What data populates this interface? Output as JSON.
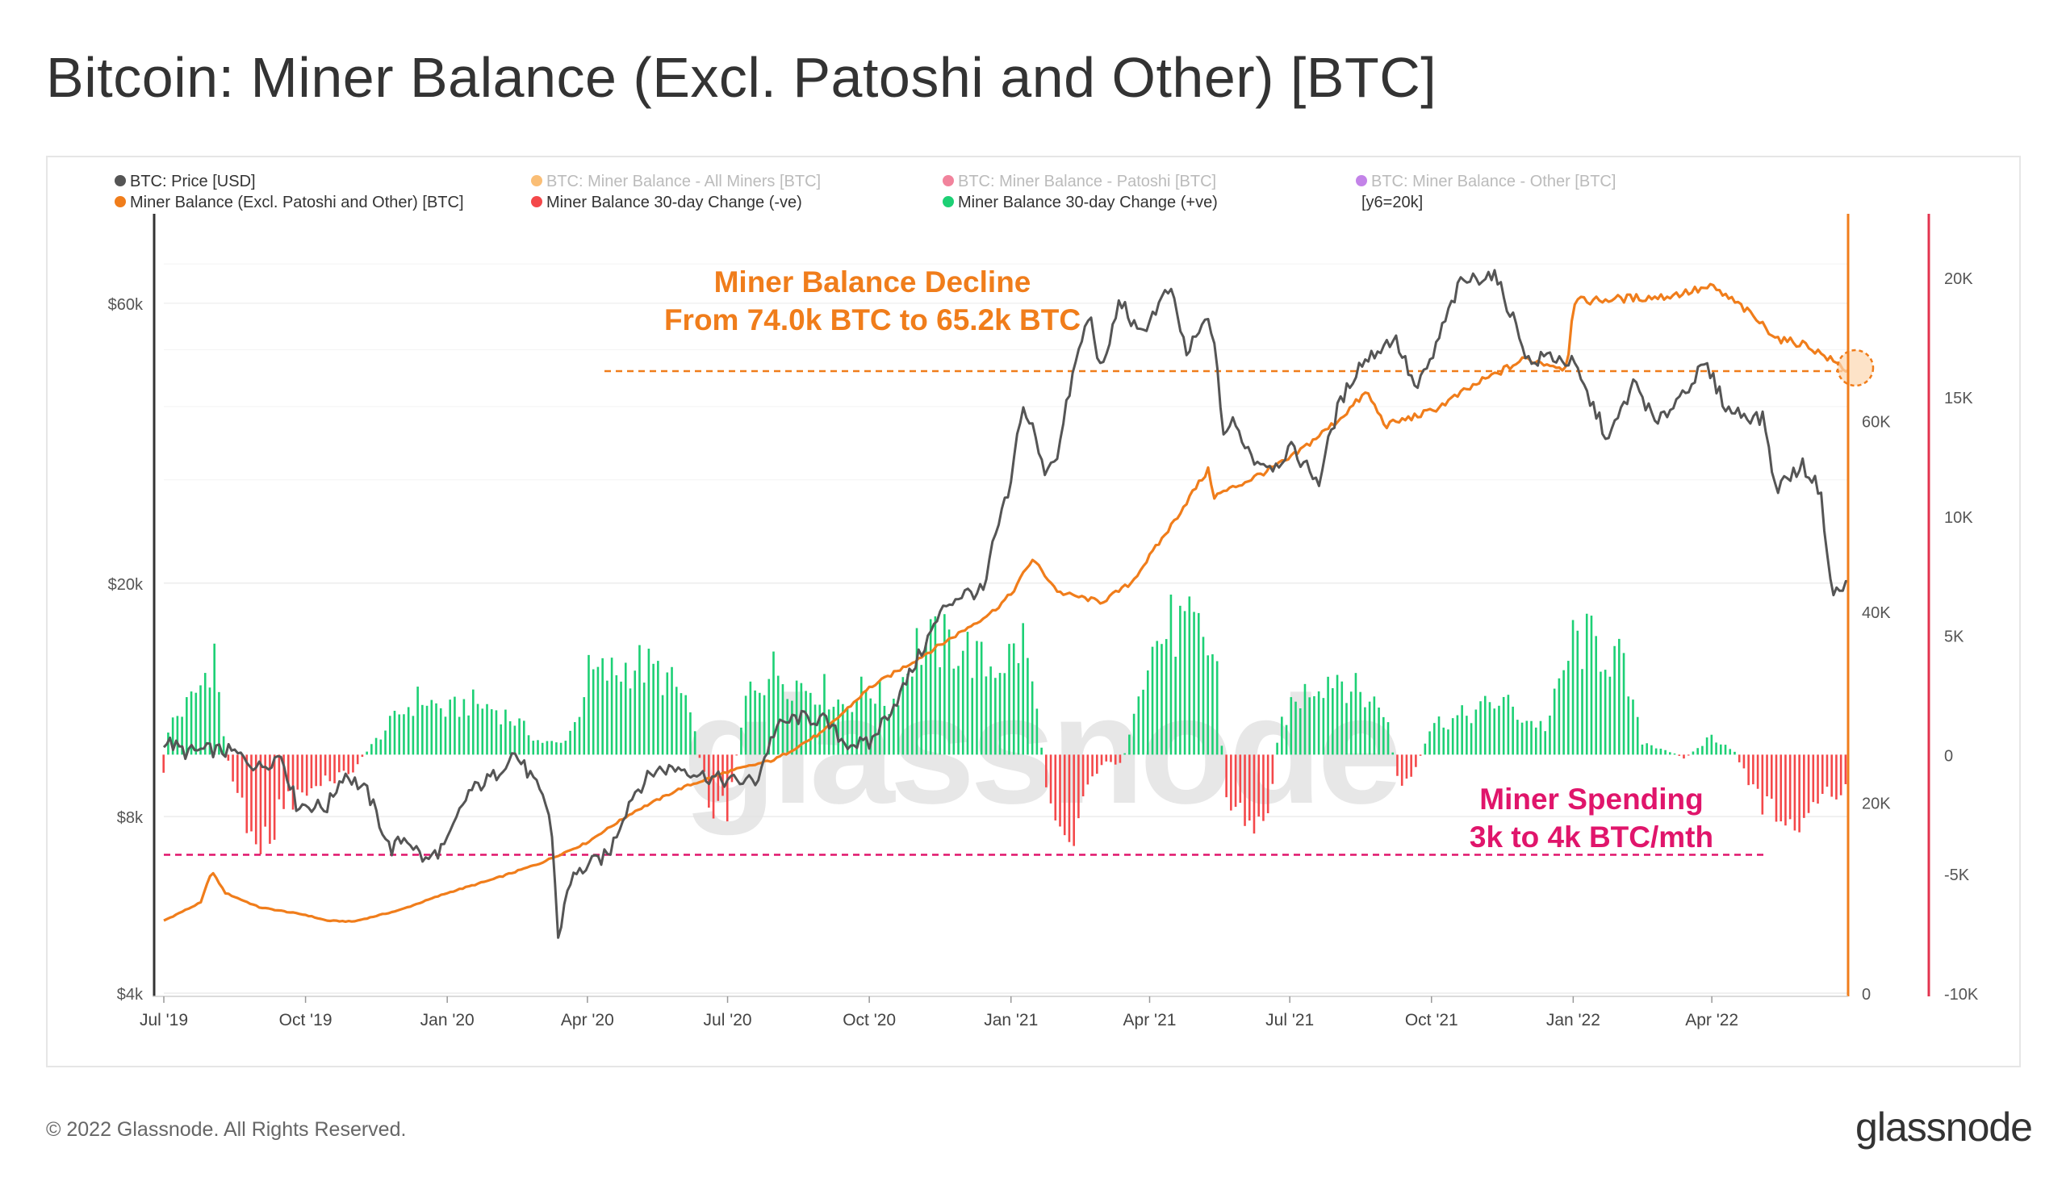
{
  "page": {
    "title": "Bitcoin: Miner Balance (Excl. Patoshi and Other) [BTC]",
    "copyright": "© 2022 Glassnode. All Rights Reserved.",
    "brand": "glassnode",
    "watermark": "glassnode"
  },
  "chart_data": {
    "type": "line",
    "legend": [
      {
        "label": "BTC: Price [USD]",
        "color": "#555555",
        "active": true
      },
      {
        "label": "BTC: Miner Balance - All Miners [BTC]",
        "color": "#f7931a",
        "active": false
      },
      {
        "label": "BTC: Miner Balance - Patoshi [BTC]",
        "color": "#e8305a",
        "active": false
      },
      {
        "label": "BTC: Miner Balance - Other [BTC]",
        "color": "#9b30d9",
        "active": false
      },
      {
        "label": "Miner Balance (Excl. Patoshi and Other) [BTC]",
        "color": "#f07d1b",
        "active": true
      },
      {
        "label": "Miner Balance 30-day Change (-ve)",
        "color": "#f4484a",
        "active": true
      },
      {
        "label": "Miner Balance 30-day Change (+ve)",
        "color": "#1dd075",
        "active": true
      },
      {
        "label": "[y6=20k]",
        "color": "",
        "active": true
      }
    ],
    "x_ticks": [
      "Jul '19",
      "Oct '19",
      "Jan '20",
      "Apr '20",
      "Jul '20",
      "Oct '20",
      "Jan '21",
      "Apr '21",
      "Jul '21",
      "Oct '21",
      "Jan '22",
      "Apr '22"
    ],
    "x_tick_dates": [
      "2019-07-01",
      "2019-10-01",
      "2020-01-01",
      "2020-04-01",
      "2020-07-01",
      "2020-10-01",
      "2021-01-01",
      "2021-04-01",
      "2021-07-01",
      "2021-10-01",
      "2022-01-01",
      "2022-04-01"
    ],
    "x_range": [
      "2019-07-01",
      "2022-06-29"
    ],
    "y_axes": {
      "price": {
        "label_ticks": [
          "$4k",
          "$8k",
          "$20k",
          "$60k"
        ],
        "tick_values": [
          4000,
          8000,
          20000,
          60000
        ],
        "scale": "log",
        "range": [
          4000,
          80000
        ]
      },
      "balance": {
        "label_ticks": [
          "0",
          "20K",
          "40K",
          "60K"
        ],
        "tick_values": [
          0,
          20000,
          40000,
          60000
        ],
        "range": [
          0,
          80000
        ]
      },
      "change": {
        "label_ticks": [
          "-10K",
          "-5K",
          "0",
          "5K",
          "10K",
          "15K",
          "20K"
        ],
        "tick_values": [
          -10000,
          -5000,
          0,
          5000,
          10000,
          15000,
          20000
        ],
        "range": [
          -10000,
          22000
        ]
      }
    },
    "series": [
      {
        "name": "BTC: Price [USD]",
        "axis": "price",
        "color": "#555555",
        "points": [
          [
            "2019-07-01",
            10800
          ],
          [
            "2019-07-15",
            10300
          ],
          [
            "2019-08-01",
            10400
          ],
          [
            "2019-08-15",
            10300
          ],
          [
            "2019-09-01",
            9700
          ],
          [
            "2019-09-15",
            10200
          ],
          [
            "2019-09-25",
            8400
          ],
          [
            "2019-10-15",
            8300
          ],
          [
            "2019-10-26",
            9500
          ],
          [
            "2019-11-10",
            8800
          ],
          [
            "2019-11-25",
            7000
          ],
          [
            "2019-12-05",
            7400
          ],
          [
            "2019-12-18",
            6700
          ],
          [
            "2020-01-01",
            7200
          ],
          [
            "2020-01-15",
            8800
          ],
          [
            "2020-02-01",
            9400
          ],
          [
            "2020-02-13",
            10300
          ],
          [
            "2020-02-25",
            9300
          ],
          [
            "2020-03-08",
            8000
          ],
          [
            "2020-03-13",
            4900
          ],
          [
            "2020-03-20",
            6200
          ],
          [
            "2020-04-01",
            6600
          ],
          [
            "2020-04-15",
            6900
          ],
          [
            "2020-04-30",
            8700
          ],
          [
            "2020-05-15",
            9600
          ],
          [
            "2020-06-01",
            9700
          ],
          [
            "2020-06-15",
            9400
          ],
          [
            "2020-07-01",
            9200
          ],
          [
            "2020-07-20",
            9200
          ],
          [
            "2020-08-01",
            11300
          ],
          [
            "2020-08-15",
            11800
          ],
          [
            "2020-09-01",
            11700
          ],
          [
            "2020-09-15",
            10700
          ],
          [
            "2020-10-01",
            10600
          ],
          [
            "2020-10-21",
            12900
          ],
          [
            "2020-11-05",
            15500
          ],
          [
            "2020-11-20",
            18400
          ],
          [
            "2020-12-01",
            19200
          ],
          [
            "2020-12-15",
            19400
          ],
          [
            "2020-12-20",
            23000
          ],
          [
            "2021-01-01",
            29300
          ],
          [
            "2021-01-08",
            40000
          ],
          [
            "2021-01-15",
            36800
          ],
          [
            "2021-01-22",
            31000
          ],
          [
            "2021-02-01",
            33500
          ],
          [
            "2021-02-10",
            45000
          ],
          [
            "2021-02-21",
            57500
          ],
          [
            "2021-03-01",
            45000
          ],
          [
            "2021-03-13",
            61000
          ],
          [
            "2021-03-25",
            52500
          ],
          [
            "2021-04-14",
            63500
          ],
          [
            "2021-04-25",
            49000
          ],
          [
            "2021-05-10",
            57000
          ],
          [
            "2021-05-19",
            36000
          ],
          [
            "2021-05-25",
            37500
          ],
          [
            "2021-06-08",
            32500
          ],
          [
            "2021-06-22",
            31700
          ],
          [
            "2021-07-01",
            34000
          ],
          [
            "2021-07-20",
            29800
          ],
          [
            "2021-08-01",
            39500
          ],
          [
            "2021-08-15",
            47000
          ],
          [
            "2021-09-07",
            52500
          ],
          [
            "2021-09-21",
            42500
          ],
          [
            "2021-10-01",
            48000
          ],
          [
            "2021-10-20",
            65000
          ],
          [
            "2021-11-10",
            67500
          ],
          [
            "2021-11-26",
            54000
          ],
          [
            "2021-12-04",
            47000
          ],
          [
            "2021-12-15",
            49000
          ],
          [
            "2022-01-01",
            47300
          ],
          [
            "2022-01-10",
            41900
          ],
          [
            "2022-01-24",
            35000
          ],
          [
            "2022-02-10",
            44000
          ],
          [
            "2022-02-24",
            37000
          ],
          [
            "2022-03-28",
            47000
          ],
          [
            "2022-04-11",
            39500
          ],
          [
            "2022-05-05",
            38000
          ],
          [
            "2022-05-12",
            29000
          ],
          [
            "2022-05-30",
            31700
          ],
          [
            "2022-06-10",
            29000
          ],
          [
            "2022-06-18",
            19000
          ],
          [
            "2022-06-29",
            20000
          ]
        ]
      },
      {
        "name": "Miner Balance (Excl. Patoshi and Other) [BTC]",
        "axis": "balance",
        "color": "#f07d1b",
        "points": [
          [
            "2019-07-01",
            7600
          ],
          [
            "2019-07-25",
            9500
          ],
          [
            "2019-08-01",
            12800
          ],
          [
            "2019-08-10",
            10500
          ],
          [
            "2019-09-01",
            9000
          ],
          [
            "2019-10-01",
            8200
          ],
          [
            "2019-10-15",
            7600
          ],
          [
            "2019-11-01",
            7500
          ],
          [
            "2019-12-01",
            8700
          ],
          [
            "2020-01-01",
            10500
          ],
          [
            "2020-02-01",
            12000
          ],
          [
            "2020-03-01",
            13600
          ],
          [
            "2020-04-01",
            15800
          ],
          [
            "2020-04-08",
            16600
          ],
          [
            "2020-05-01",
            19000
          ],
          [
            "2020-06-01",
            21500
          ],
          [
            "2020-07-01",
            23200
          ],
          [
            "2020-08-01",
            24500
          ],
          [
            "2020-09-01",
            27400
          ],
          [
            "2020-10-01",
            32000
          ],
          [
            "2020-11-01",
            35000
          ],
          [
            "2020-12-01",
            38000
          ],
          [
            "2020-12-20",
            40000
          ],
          [
            "2021-01-01",
            41800
          ],
          [
            "2021-01-15",
            45500
          ],
          [
            "2021-02-01",
            42000
          ],
          [
            "2021-03-01",
            41000
          ],
          [
            "2021-03-20",
            43000
          ],
          [
            "2021-04-15",
            49000
          ],
          [
            "2021-05-01",
            53000
          ],
          [
            "2021-05-10",
            55000
          ],
          [
            "2021-05-12",
            52000
          ],
          [
            "2021-06-01",
            53500
          ],
          [
            "2021-07-01",
            56000
          ],
          [
            "2021-08-01",
            60000
          ],
          [
            "2021-08-20",
            63000
          ],
          [
            "2021-09-01",
            59500
          ],
          [
            "2021-10-01",
            61000
          ],
          [
            "2021-11-01",
            64000
          ],
          [
            "2021-12-01",
            66500
          ],
          [
            "2021-12-28",
            65500
          ],
          [
            "2022-01-01",
            72500
          ],
          [
            "2022-02-01",
            72800
          ],
          [
            "2022-03-01",
            73000
          ],
          [
            "2022-04-01",
            74000
          ],
          [
            "2022-04-20",
            72000
          ],
          [
            "2022-05-15",
            68500
          ],
          [
            "2022-06-01",
            68000
          ],
          [
            "2022-06-29",
            65200
          ]
        ]
      },
      {
        "name": "Miner Balance 30-day Change",
        "axis": "change",
        "color_positive": "#1dd075",
        "color_negative": "#f4484a",
        "points": [
          [
            "2019-07-01",
            -1200
          ],
          [
            "2019-07-05",
            1800
          ],
          [
            "2019-07-15",
            2500
          ],
          [
            "2019-07-25",
            3700
          ],
          [
            "2019-08-03",
            5700
          ],
          [
            "2019-08-08",
            1500
          ],
          [
            "2019-08-15",
            -1600
          ],
          [
            "2019-08-25",
            -3500
          ],
          [
            "2019-09-01",
            -4200
          ],
          [
            "2019-09-05",
            -5300
          ],
          [
            "2019-09-15",
            -2600
          ],
          [
            "2019-10-01",
            -2200
          ],
          [
            "2019-10-15",
            -1400
          ],
          [
            "2019-11-01",
            -800
          ],
          [
            "2019-11-15",
            700
          ],
          [
            "2019-12-01",
            2200
          ],
          [
            "2019-12-15",
            3100
          ],
          [
            "2020-01-01",
            2300
          ],
          [
            "2020-01-15",
            2800
          ],
          [
            "2020-02-01",
            2500
          ],
          [
            "2020-02-15",
            1800
          ],
          [
            "2020-03-01",
            700
          ],
          [
            "2020-03-15",
            600
          ],
          [
            "2020-03-25",
            1800
          ],
          [
            "2020-04-01",
            4300
          ],
          [
            "2020-04-20",
            4400
          ],
          [
            "2020-05-01",
            5000
          ],
          [
            "2020-05-20",
            4300
          ],
          [
            "2020-06-05",
            2900
          ],
          [
            "2020-06-20",
            -2800
          ],
          [
            "2020-07-01",
            -2800
          ],
          [
            "2020-07-15",
            3700
          ],
          [
            "2020-08-01",
            4600
          ],
          [
            "2020-08-15",
            3900
          ],
          [
            "2020-09-01",
            3500
          ],
          [
            "2020-09-15",
            2700
          ],
          [
            "2020-10-01",
            3700
          ],
          [
            "2020-10-15",
            2600
          ],
          [
            "2020-11-01",
            5900
          ],
          [
            "2020-11-15",
            6000
          ],
          [
            "2020-12-01",
            5900
          ],
          [
            "2020-12-15",
            4700
          ],
          [
            "2021-01-01",
            5300
          ],
          [
            "2021-01-10",
            6200
          ],
          [
            "2021-01-20",
            1200
          ],
          [
            "2021-01-25",
            -2200
          ],
          [
            "2021-02-01",
            -3100
          ],
          [
            "2021-02-10",
            -4500
          ],
          [
            "2021-02-20",
            -1500
          ],
          [
            "2021-03-01",
            -500
          ],
          [
            "2021-03-15",
            -400
          ],
          [
            "2021-03-25",
            4200
          ],
          [
            "2021-04-01",
            5500
          ],
          [
            "2021-04-15",
            6900
          ],
          [
            "2021-05-01",
            6600
          ],
          [
            "2021-05-15",
            5100
          ],
          [
            "2021-05-20",
            -2700
          ],
          [
            "2021-06-01",
            -3200
          ],
          [
            "2021-06-15",
            -4200
          ],
          [
            "2021-06-25",
            1700
          ],
          [
            "2021-07-15",
            3800
          ],
          [
            "2021-08-01",
            4400
          ],
          [
            "2021-08-15",
            3300
          ],
          [
            "2021-09-01",
            2500
          ],
          [
            "2021-09-10",
            -1800
          ],
          [
            "2021-09-20",
            -1100
          ],
          [
            "2021-10-01",
            1700
          ],
          [
            "2021-10-15",
            1900
          ],
          [
            "2021-11-01",
            2400
          ],
          [
            "2021-11-15",
            3000
          ],
          [
            "2021-12-01",
            1900
          ],
          [
            "2021-12-15",
            1500
          ],
          [
            "2022-01-01",
            6100
          ],
          [
            "2022-01-15",
            6000
          ],
          [
            "2022-02-01",
            5000
          ],
          [
            "2022-02-15",
            700
          ],
          [
            "2022-03-01",
            300
          ],
          [
            "2022-03-15",
            -200
          ],
          [
            "2022-04-01",
            1000
          ],
          [
            "2022-04-15",
            300
          ],
          [
            "2022-05-01",
            -2300
          ],
          [
            "2022-05-15",
            -3400
          ],
          [
            "2022-06-01",
            -3700
          ],
          [
            "2022-06-15",
            -2000
          ],
          [
            "2022-06-29",
            -2200
          ]
        ]
      }
    ],
    "annotations": [
      {
        "text_lines": [
          "Miner Balance Decline",
          "From 74.0k BTC to 65.2k BTC"
        ],
        "color": "#f07d1b",
        "ref_line_axis": "balance",
        "ref_value": 65200
      },
      {
        "text_lines": [
          "Miner Spending",
          "3k to 4k BTC/mth"
        ],
        "color": "#e0156b",
        "ref_line_axis": "change",
        "ref_value": -4200
      }
    ]
  }
}
